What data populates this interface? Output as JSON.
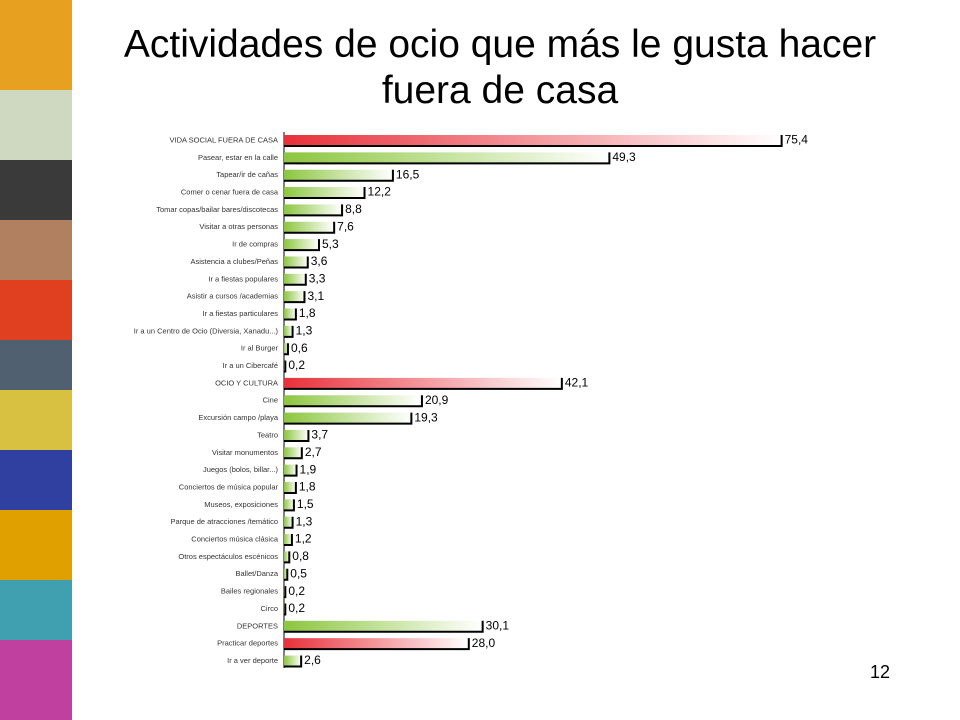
{
  "chart_data": {
    "type": "bar",
    "orientation": "horizontal",
    "title": "Actividades de ocio que más le gusta hacer fuera de casa",
    "page_number": "12",
    "categories": [
      "VIDA SOCIAL FUERA DE CASA",
      "Pasear, estar en la calle",
      "Tapear/ir de cañas",
      "Comer o cenar fuera de casa",
      "Tomar copas/bailar bares/discotecas",
      "Visitar a otras personas",
      "Ir de compras",
      "Asistencia a clubes/Peñas",
      "Ir a fiestas populares",
      "Asistir a cursos /academias",
      "Ir a fiestas particulares",
      "Ir a un Centro de Ocio (Diversia, Xanadu...)",
      "Ir al Burger",
      "Ir a un Cibercafé",
      "OCIO Y CULTURA",
      "Cine",
      "Excursión campo /playa",
      "Teatro",
      "Visitar monumentos",
      "Juegos (bolos, billar...)",
      "Conciertos de música popular",
      "Museos, exposiciones",
      "Parque de atracciones /temático",
      "Conciertos música clásica",
      "Otros espectáculos escénicos",
      "Ballet/Danza",
      "Bailes regionales",
      "Circo",
      "DEPORTES",
      "Practicar deportes",
      "Ir a ver deporte"
    ],
    "values": [
      75.4,
      49.3,
      16.5,
      12.2,
      8.8,
      7.6,
      5.3,
      3.6,
      3.3,
      3.1,
      1.8,
      1.3,
      0.6,
      0.2,
      42.1,
      20.9,
      19.3,
      3.7,
      2.7,
      1.9,
      1.8,
      1.5,
      1.3,
      1.2,
      0.8,
      0.5,
      0.2,
      0.2,
      30.1,
      28.0,
      2.6
    ],
    "value_labels": [
      "75,4",
      "49,3",
      "16,5",
      "12,2",
      "8,8",
      "7,6",
      "5,3",
      "3,6",
      "3,3",
      "3,1",
      "1,8",
      "1,3",
      "0,6",
      "0,2",
      "42,1",
      "20,9",
      "19,3",
      "3,7",
      "2,7",
      "1,9",
      "1,8",
      "1,5",
      "1,3",
      "1,2",
      "0,8",
      "0,5",
      "0,2",
      "0,2",
      "30,1",
      "28,0",
      "2,6"
    ],
    "colors": [
      "#e8303a",
      "#8cc63f",
      "#8cc63f",
      "#8cc63f",
      "#8cc63f",
      "#8cc63f",
      "#8cc63f",
      "#8cc63f",
      "#8cc63f",
      "#8cc63f",
      "#8cc63f",
      "#8cc63f",
      "#8cc63f",
      "#8cc63f",
      "#e8303a",
      "#8cc63f",
      "#8cc63f",
      "#8cc63f",
      "#8cc63f",
      "#8cc63f",
      "#8cc63f",
      "#8cc63f",
      "#8cc63f",
      "#8cc63f",
      "#8cc63f",
      "#8cc63f",
      "#8cc63f",
      "#8cc63f",
      "#8cc63f",
      "#e8303a",
      "#8cc63f"
    ]
  }
}
